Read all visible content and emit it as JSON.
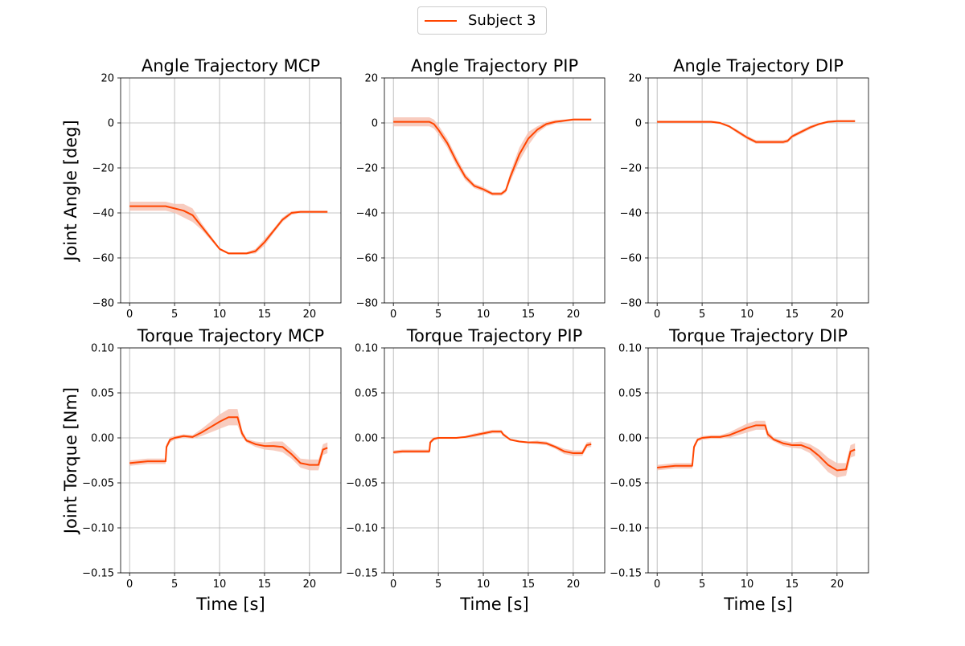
{
  "legend": {
    "label": "Subject 3",
    "color": "#ff4500",
    "band_color": "#f7c3b4"
  },
  "figure": {
    "ylabel_top": "Joint Angle [deg]",
    "ylabel_bottom": "Joint Torque [Nm]"
  },
  "chart_data": [
    {
      "type": "line",
      "title": "Angle Trajectory MCP",
      "xlabel": "",
      "ylabel": "Joint Angle [deg]",
      "xlim": [
        -1,
        23.5
      ],
      "ylim": [
        -80,
        20
      ],
      "xticks": [
        "0",
        "5",
        "10",
        "15",
        "20"
      ],
      "yticks": [
        "20",
        "0",
        "−20",
        "−40",
        "−60",
        "−80"
      ],
      "grid": true,
      "series": [
        {
          "name": "Subject 3",
          "x": [
            0,
            2,
            4,
            5,
            6,
            7,
            8,
            9,
            10,
            11,
            12,
            13,
            14,
            15,
            16,
            17,
            18,
            19,
            20,
            21,
            22
          ],
          "y": [
            -37,
            -37,
            -37,
            -38,
            -39,
            -41,
            -46,
            -51,
            -56,
            -58,
            -58,
            -58,
            -57,
            -53,
            -48,
            -43,
            -40,
            -39.5,
            -39.5,
            -39.5,
            -39.5
          ],
          "band": [
            2,
            2,
            2,
            2,
            3,
            3,
            1.5,
            1,
            0.5,
            0.5,
            0.5,
            0.5,
            1,
            1.5,
            1,
            1,
            0.8,
            0.5,
            0.5,
            0.5,
            0.5
          ]
        }
      ]
    },
    {
      "type": "line",
      "title": "Angle Trajectory PIP",
      "xlabel": "",
      "ylabel": "",
      "xlim": [
        -1,
        23.5
      ],
      "ylim": [
        -80,
        20
      ],
      "xticks": [
        "0",
        "5",
        "10",
        "15",
        "20"
      ],
      "yticks": [
        "20",
        "0",
        "−20",
        "−40",
        "−60",
        "−80"
      ],
      "grid": true,
      "series": [
        {
          "name": "Subject 3",
          "x": [
            0,
            2,
            4,
            4.5,
            5,
            6,
            7,
            8,
            9,
            10,
            11,
            12,
            12.5,
            13,
            14,
            15,
            16,
            17,
            18,
            19,
            20,
            21,
            22
          ],
          "y": [
            0.5,
            0.5,
            0.5,
            -0.5,
            -3,
            -9,
            -17,
            -24,
            -28,
            -29.5,
            -31.5,
            -31.5,
            -30,
            -24,
            -14,
            -7,
            -3,
            -0.5,
            0.5,
            1,
            1.5,
            1.5,
            1.5
          ],
          "band": [
            2,
            2,
            2,
            2,
            2,
            2,
            2,
            1.5,
            1,
            1,
            0.8,
            0.8,
            1,
            2,
            3,
            3,
            1.5,
            1,
            0.8,
            0.5,
            0.5,
            0.5,
            0.5
          ]
        }
      ]
    },
    {
      "type": "line",
      "title": "Angle Trajectory DIP",
      "xlabel": "",
      "ylabel": "",
      "xlim": [
        -1,
        23.5
      ],
      "ylim": [
        -80,
        20
      ],
      "xticks": [
        "0",
        "5",
        "10",
        "15",
        "20"
      ],
      "yticks": [
        "20",
        "0",
        "−20",
        "−40",
        "−60",
        "−80"
      ],
      "grid": true,
      "series": [
        {
          "name": "Subject 3",
          "x": [
            0,
            2,
            4,
            6,
            7,
            8,
            9,
            10,
            11,
            12,
            13,
            14,
            14.5,
            15,
            16,
            17,
            18,
            19,
            20,
            21,
            22
          ],
          "y": [
            0.5,
            0.5,
            0.5,
            0.5,
            0,
            -1.5,
            -4,
            -6.5,
            -8.5,
            -8.5,
            -8.5,
            -8.5,
            -8,
            -6,
            -4,
            -2,
            -0.5,
            0.5,
            0.8,
            0.8,
            0.8
          ],
          "band": [
            0.5,
            0.5,
            0.5,
            0.5,
            0.5,
            0.5,
            0.8,
            0.8,
            0.8,
            0.8,
            0.8,
            0.8,
            0.8,
            0.8,
            0.8,
            0.8,
            0.5,
            0.5,
            0.5,
            0.5,
            0.5
          ]
        }
      ]
    },
    {
      "type": "line",
      "title": "Torque Trajectory MCP",
      "xlabel": "Time [s]",
      "ylabel": "Joint Torque [Nm]",
      "xlim": [
        -1,
        23.5
      ],
      "ylim": [
        -0.15,
        0.1
      ],
      "xticks": [
        "0",
        "5",
        "10",
        "15",
        "20"
      ],
      "yticks": [
        "0.10",
        "0.05",
        "0.00",
        "−0.05",
        "−0.10",
        "−0.15"
      ],
      "grid": true,
      "series": [
        {
          "name": "Subject 3",
          "x": [
            0,
            1,
            2,
            3,
            4,
            4.1,
            4.5,
            5,
            6,
            7,
            8,
            9,
            10,
            11,
            12,
            12.5,
            13,
            14,
            15,
            16,
            17,
            18,
            19,
            20,
            21,
            21.5,
            22
          ],
          "y": [
            -0.028,
            -0.027,
            -0.026,
            -0.026,
            -0.026,
            -0.01,
            -0.002,
            0.0,
            0.002,
            0.001,
            0.006,
            0.012,
            0.018,
            0.023,
            0.023,
            0.005,
            -0.003,
            -0.007,
            -0.009,
            -0.009,
            -0.01,
            -0.018,
            -0.028,
            -0.03,
            -0.03,
            -0.013,
            -0.011
          ],
          "band": [
            0.003,
            0.003,
            0.003,
            0.003,
            0.003,
            0.003,
            0.003,
            0.002,
            0.002,
            0.002,
            0.004,
            0.006,
            0.008,
            0.009,
            0.009,
            0.004,
            0.002,
            0.003,
            0.004,
            0.005,
            0.006,
            0.005,
            0.005,
            0.006,
            0.006,
            0.006,
            0.006
          ]
        }
      ]
    },
    {
      "type": "line",
      "title": "Torque Trajectory PIP",
      "xlabel": "Time [s]",
      "ylabel": "",
      "xlim": [
        -1,
        23.5
      ],
      "ylim": [
        -0.15,
        0.1
      ],
      "xticks": [
        "0",
        "5",
        "10",
        "15",
        "20"
      ],
      "yticks": [
        "0.10",
        "0.05",
        "0.00",
        "−0.05",
        "−0.10",
        "−0.15"
      ],
      "grid": true,
      "series": [
        {
          "name": "Subject 3",
          "x": [
            0,
            1,
            2,
            3,
            4,
            4.1,
            4.5,
            5,
            6,
            7,
            8,
            9,
            10,
            11,
            12,
            12.2,
            13,
            14,
            15,
            16,
            17,
            18,
            19,
            20,
            21,
            21.5,
            22
          ],
          "y": [
            -0.016,
            -0.015,
            -0.015,
            -0.015,
            -0.015,
            -0.005,
            -0.001,
            0.0,
            0.0,
            0.0,
            0.001,
            0.003,
            0.005,
            0.007,
            0.007,
            0.004,
            -0.002,
            -0.004,
            -0.005,
            -0.005,
            -0.006,
            -0.01,
            -0.015,
            -0.017,
            -0.017,
            -0.008,
            -0.007
          ],
          "band": [
            0.002,
            0.002,
            0.002,
            0.002,
            0.002,
            0.002,
            0.002,
            0.001,
            0.001,
            0.001,
            0.001,
            0.002,
            0.002,
            0.002,
            0.002,
            0.002,
            0.001,
            0.001,
            0.001,
            0.002,
            0.002,
            0.002,
            0.003,
            0.003,
            0.003,
            0.003,
            0.003
          ]
        }
      ]
    },
    {
      "type": "line",
      "title": "Torque Trajectory DIP",
      "xlabel": "Time [s]",
      "ylabel": "",
      "xlim": [
        -1,
        23.5
      ],
      "ylim": [
        -0.15,
        0.1
      ],
      "xticks": [
        "0",
        "5",
        "10",
        "15",
        "20"
      ],
      "yticks": [
        "0.10",
        "0.05",
        "0.00",
        "−0.05",
        "−0.10",
        "−0.15"
      ],
      "grid": true,
      "series": [
        {
          "name": "Subject 3",
          "x": [
            0,
            1,
            2,
            3,
            3.9,
            4.1,
            4.5,
            5,
            6,
            7,
            8,
            9,
            10,
            11,
            12,
            12.3,
            13,
            14,
            15,
            16,
            17,
            18,
            19,
            20,
            21,
            21.5,
            22
          ],
          "y": [
            -0.033,
            -0.032,
            -0.031,
            -0.031,
            -0.031,
            -0.01,
            -0.002,
            0.0,
            0.001,
            0.001,
            0.003,
            0.007,
            0.011,
            0.014,
            0.014,
            0.004,
            -0.002,
            -0.006,
            -0.008,
            -0.008,
            -0.012,
            -0.02,
            -0.03,
            -0.036,
            -0.035,
            -0.015,
            -0.013
          ],
          "band": [
            0.003,
            0.003,
            0.003,
            0.003,
            0.003,
            0.003,
            0.002,
            0.002,
            0.002,
            0.002,
            0.003,
            0.004,
            0.005,
            0.005,
            0.005,
            0.004,
            0.002,
            0.003,
            0.003,
            0.004,
            0.005,
            0.007,
            0.008,
            0.008,
            0.007,
            0.007,
            0.007
          ]
        }
      ]
    }
  ]
}
